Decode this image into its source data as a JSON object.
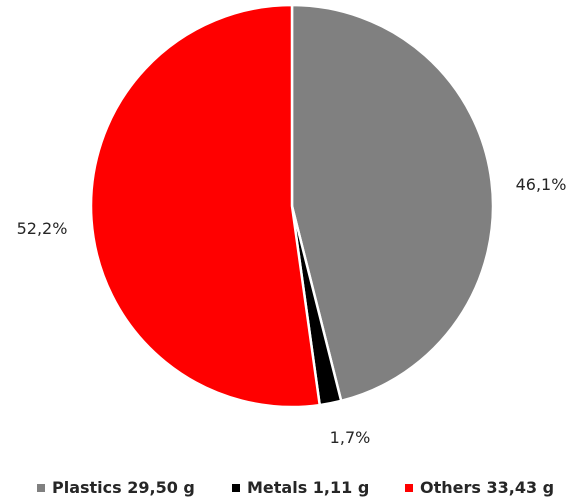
{
  "chart_data": {
    "type": "pie",
    "start_angle_deg": 0,
    "direction": "clockwise",
    "slices": [
      {
        "name": "Plastics",
        "value": 29.5,
        "unit": "g",
        "percent_label": "46,1%",
        "color": "#808080",
        "legend_text": "Plastics 29,50 g"
      },
      {
        "name": "Metals",
        "value": 1.11,
        "unit": "g",
        "percent_label": "1,7%",
        "color": "#000000",
        "legend_text": "Metals 1,11 g"
      },
      {
        "name": "Others",
        "value": 33.43,
        "unit": "g",
        "percent_label": "52,2%",
        "color": "#ff0000",
        "legend_text": "Others 33,43 g"
      }
    ],
    "legend_position": "bottom"
  }
}
